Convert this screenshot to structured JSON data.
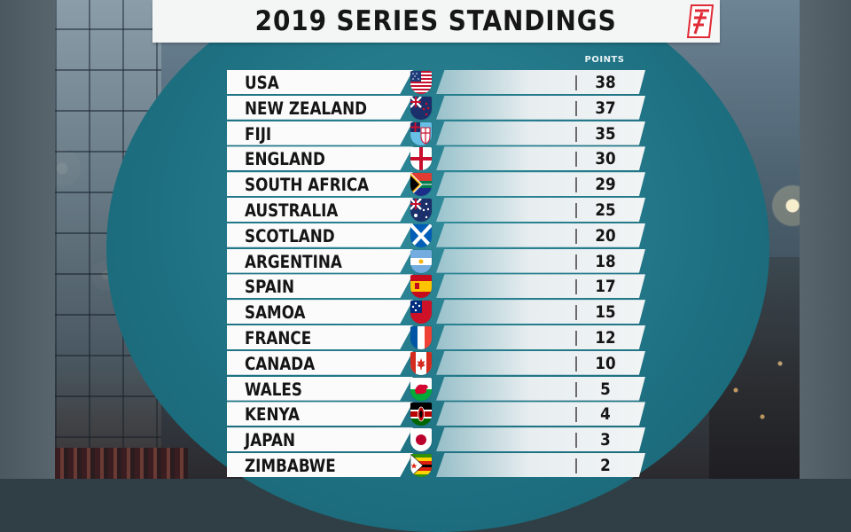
{
  "title": "2019 SERIES STANDINGS",
  "points_header": "POINTS",
  "colors": {
    "oval": "#1f7283",
    "banner": "#f4f5f5",
    "logo_red": "#e02a36"
  },
  "teams": [
    {
      "name": "USA",
      "points": "38",
      "flag": "usa-flag-icon"
    },
    {
      "name": "NEW ZEALAND",
      "points": "37",
      "flag": "new-zealand-flag-icon"
    },
    {
      "name": "FIJI",
      "points": "35",
      "flag": "fiji-flag-icon"
    },
    {
      "name": "ENGLAND",
      "points": "30",
      "flag": "england-flag-icon"
    },
    {
      "name": "SOUTH AFRICA",
      "points": "29",
      "flag": "south-africa-flag-icon"
    },
    {
      "name": "AUSTRALIA",
      "points": "25",
      "flag": "australia-flag-icon"
    },
    {
      "name": "SCOTLAND",
      "points": "20",
      "flag": "scotland-flag-icon"
    },
    {
      "name": "ARGENTINA",
      "points": "18",
      "flag": "argentina-flag-icon"
    },
    {
      "name": "SPAIN",
      "points": "17",
      "flag": "spain-flag-icon"
    },
    {
      "name": "SAMOA",
      "points": "15",
      "flag": "samoa-flag-icon"
    },
    {
      "name": "FRANCE",
      "points": "12",
      "flag": "france-flag-icon"
    },
    {
      "name": "CANADA",
      "points": "10",
      "flag": "canada-flag-icon"
    },
    {
      "name": "WALES",
      "points": "5",
      "flag": "wales-flag-icon"
    },
    {
      "name": "KENYA",
      "points": "4",
      "flag": "kenya-flag-icon"
    },
    {
      "name": "JAPAN",
      "points": "3",
      "flag": "japan-flag-icon"
    },
    {
      "name": "ZIMBABWE",
      "points": "2",
      "flag": "zimbabwe-flag-icon"
    }
  ]
}
